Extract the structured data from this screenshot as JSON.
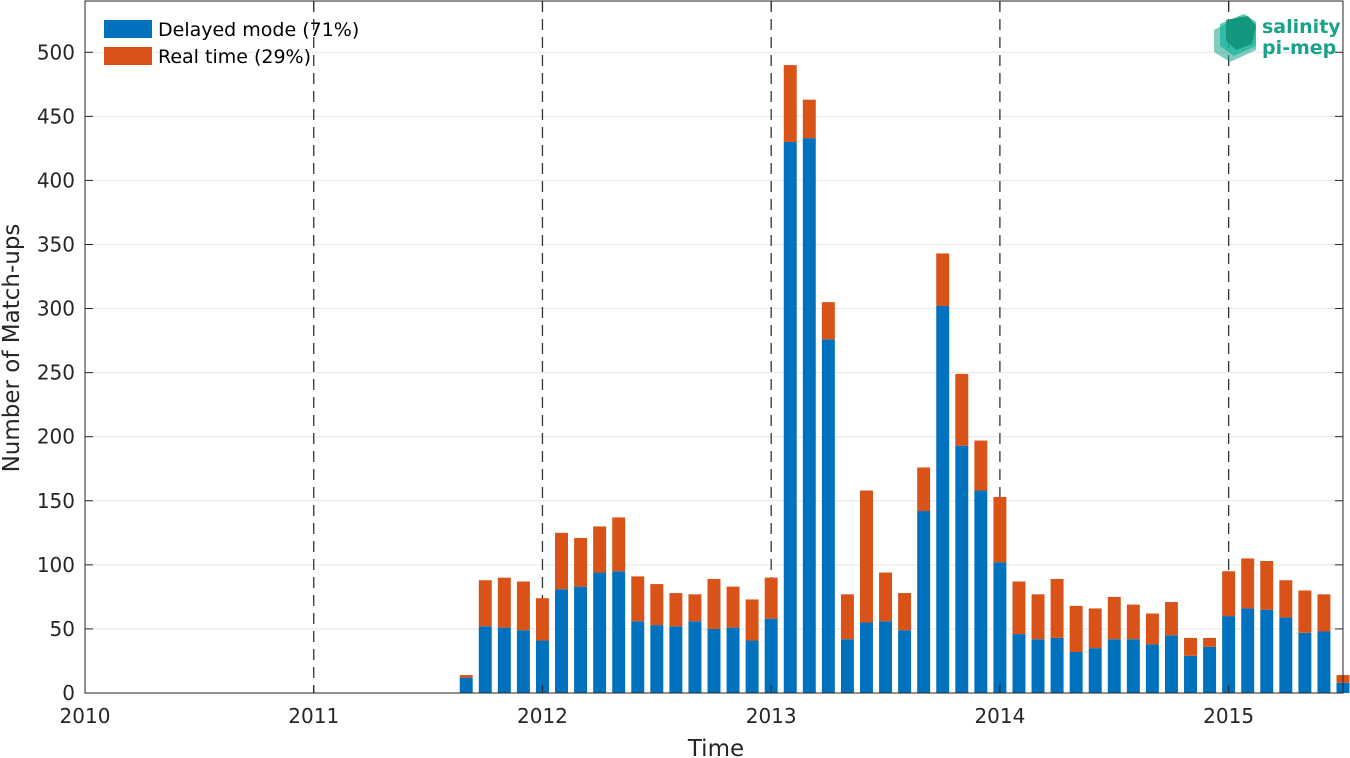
{
  "chart_data": {
    "type": "bar",
    "stacked": true,
    "xlabel": "Time",
    "ylabel": "Number of Match-ups",
    "ylim": [
      0,
      540
    ],
    "yticks": [
      0,
      50,
      100,
      150,
      200,
      250,
      300,
      350,
      400,
      450,
      500
    ],
    "xlim": [
      2010.0,
      2015.5
    ],
    "xticks": [
      2010,
      2011,
      2012,
      2013,
      2014,
      2015
    ],
    "year_divider_lines": [
      2011,
      2012,
      2013,
      2014,
      2015
    ],
    "grid": "horizontal",
    "legend_position": "top-left",
    "months": [
      "2011-09",
      "2011-10",
      "2011-11",
      "2011-12",
      "2012-01",
      "2012-02",
      "2012-03",
      "2012-04",
      "2012-05",
      "2012-06",
      "2012-07",
      "2012-08",
      "2012-09",
      "2012-10",
      "2012-11",
      "2012-12",
      "2013-01",
      "2013-02",
      "2013-03",
      "2013-04",
      "2013-05",
      "2013-06",
      "2013-07",
      "2013-08",
      "2013-09",
      "2013-10",
      "2013-11",
      "2013-12",
      "2014-01",
      "2014-02",
      "2014-03",
      "2014-04",
      "2014-05",
      "2014-06",
      "2014-07",
      "2014-08",
      "2014-09",
      "2014-10",
      "2014-11",
      "2014-12",
      "2015-01",
      "2015-02",
      "2015-03",
      "2015-04",
      "2015-05",
      "2015-06",
      "2015-07"
    ],
    "series": [
      {
        "name": "Delayed mode (71%)",
        "color": "#0072bd",
        "values": [
          12,
          52,
          51,
          49,
          41,
          81,
          83,
          94,
          95,
          56,
          53,
          52,
          56,
          50,
          51,
          41,
          58,
          430,
          433,
          276,
          42,
          55,
          56,
          49,
          142,
          302,
          193,
          158,
          102,
          46,
          42,
          43,
          32,
          35,
          42,
          42,
          38,
          45,
          29,
          36,
          60,
          66,
          65,
          59,
          47,
          48,
          8
        ]
      },
      {
        "name": "Real time (29%)",
        "color": "#d95319",
        "values": [
          2,
          36,
          39,
          38,
          33,
          44,
          38,
          36,
          42,
          35,
          32,
          26,
          21,
          39,
          32,
          32,
          32,
          60,
          30,
          29,
          35,
          103,
          38,
          29,
          34,
          41,
          56,
          39,
          51,
          41,
          35,
          46,
          36,
          31,
          33,
          27,
          24,
          26,
          14,
          7,
          35,
          39,
          38,
          29,
          33,
          29,
          6
        ]
      }
    ]
  },
  "logo": {
    "line1": "salinity",
    "line2": "pi-mep",
    "color": "#1aa38a"
  }
}
